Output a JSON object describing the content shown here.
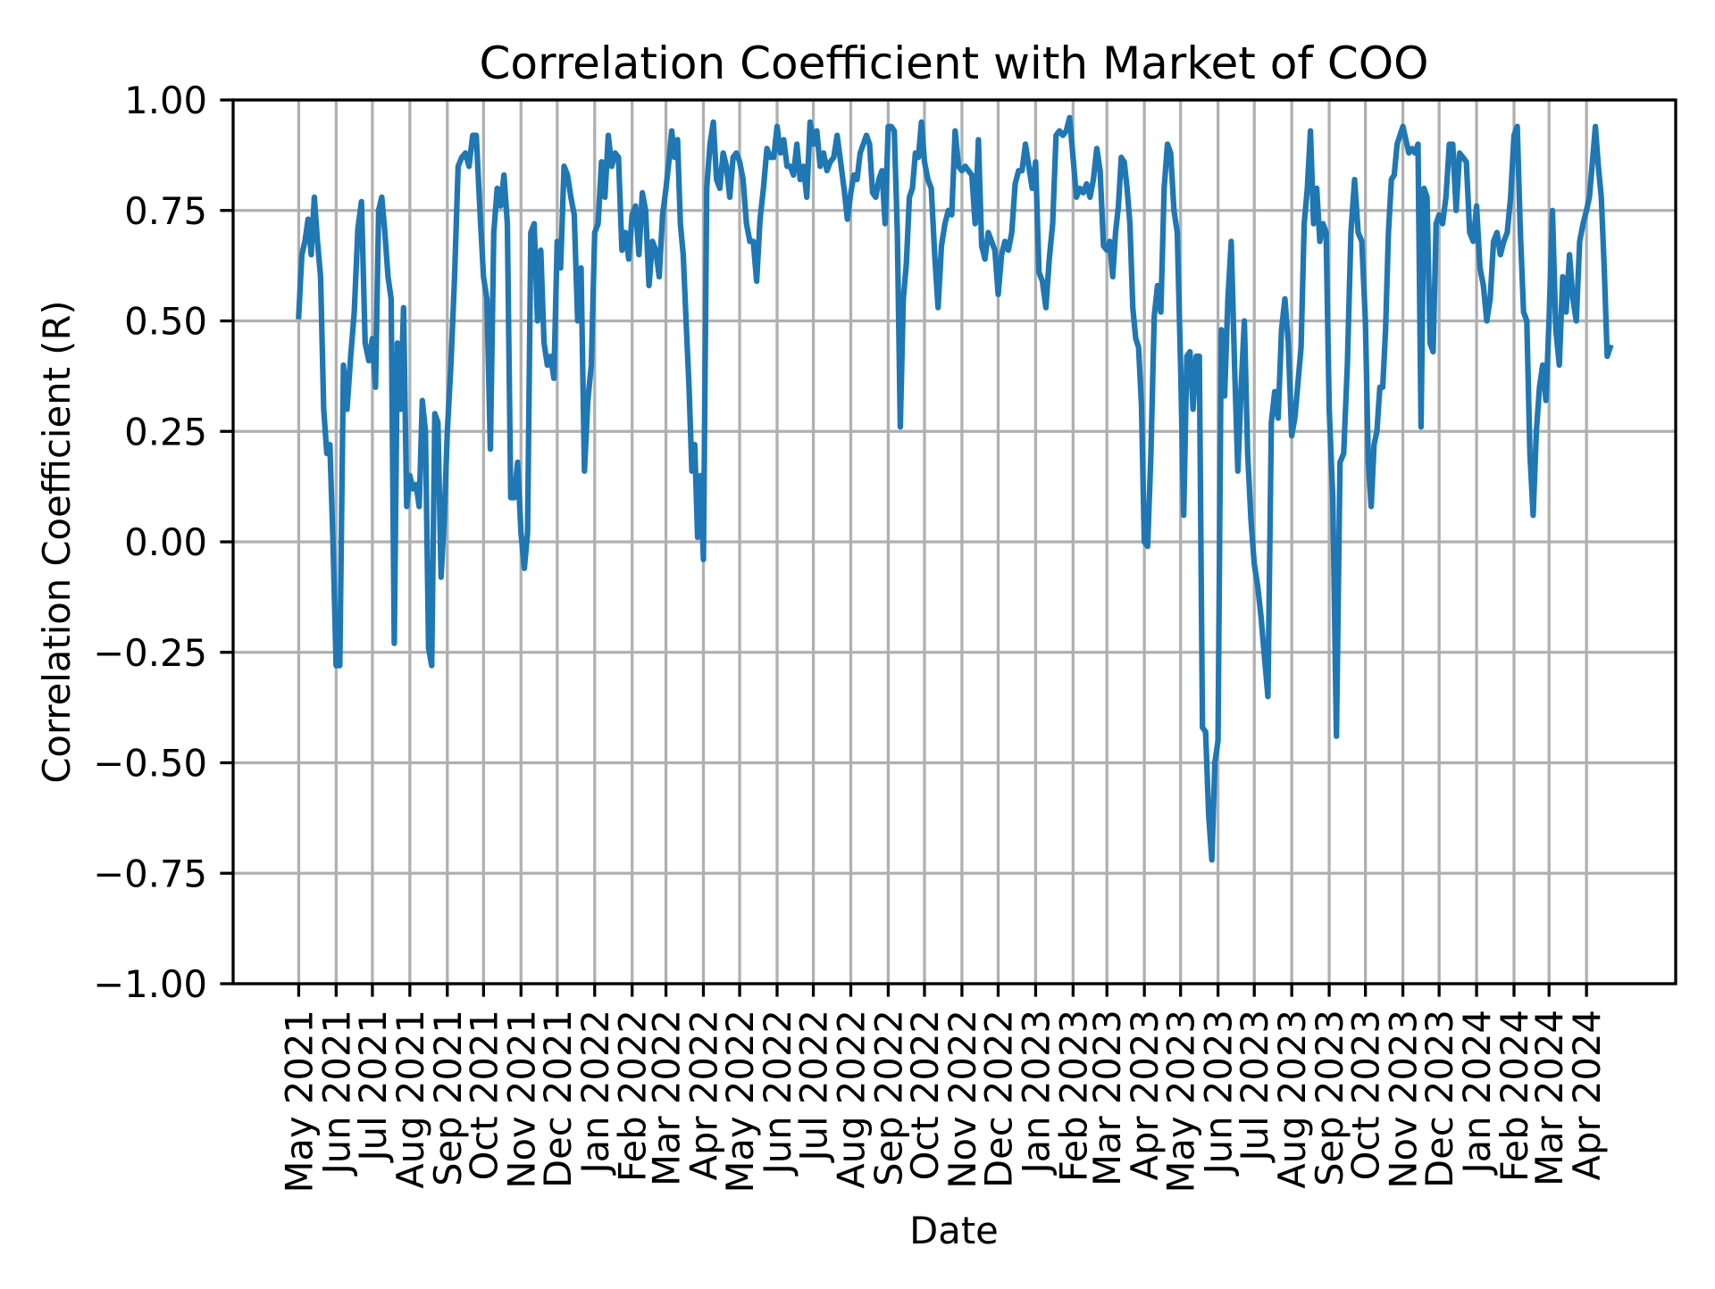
{
  "chart_data": {
    "type": "line",
    "title": "Correlation Coefficient with Market of COO",
    "xlabel": "Date",
    "ylabel": "Correlation Coefficient (R)",
    "ylim": [
      -1.0,
      1.0
    ],
    "yticks": [
      "1.00",
      "0.75",
      "0.50",
      "0.25",
      "0.00",
      "−0.25",
      "−0.50",
      "−0.75",
      "−1.00"
    ],
    "ytick_values": [
      1.0,
      0.75,
      0.5,
      0.25,
      0.0,
      -0.25,
      -0.5,
      -0.75,
      -1.0
    ],
    "xticks": [
      "May 2021",
      "Jun 2021",
      "Jul 2021",
      "Aug 2021",
      "Sep 2021",
      "Oct 2021",
      "Nov 2021",
      "Dec 2021",
      "Jan 2022",
      "Feb 2022",
      "Mar 2022",
      "Apr 2022",
      "May 2022",
      "Jun 2022",
      "Jul 2022",
      "Aug 2022",
      "Sep 2022",
      "Oct 2022",
      "Nov 2022",
      "Dec 2022",
      "Jan 2023",
      "Feb 2023",
      "Mar 2023",
      "Apr 2023",
      "May 2023",
      "Jun 2023",
      "Jul 2023",
      "Aug 2023",
      "Sep 2023",
      "Oct 2023",
      "Nov 2023",
      "Dec 2023",
      "Jan 2024",
      "Feb 2024",
      "Mar 2024",
      "Apr 2024"
    ],
    "grid": true,
    "line_color": "#1f77b4",
    "series_by_month": [
      {
        "month": "2021-05",
        "values": [
          0.51,
          0.65,
          0.68,
          0.73,
          0.65,
          0.78,
          0.68,
          0.6,
          0.3,
          0.2,
          0.22,
          0.0
        ]
      },
      {
        "month": "2021-06",
        "values": [
          -0.28,
          -0.28,
          0.4,
          0.3,
          0.42,
          0.52,
          0.71,
          0.77,
          0.45,
          0.41
        ]
      },
      {
        "month": "2021-07",
        "values": [
          0.46,
          0.35,
          0.75,
          0.78,
          0.7,
          0.6,
          0.55,
          -0.23,
          0.45,
          0.3,
          0.53,
          0.08
        ]
      },
      {
        "month": "2021-08",
        "values": [
          0.15,
          0.12,
          0.13,
          0.08,
          0.32,
          0.25,
          -0.24,
          -0.28,
          0.29,
          0.27,
          -0.08,
          0.05
        ]
      },
      {
        "month": "2021-09",
        "values": [
          0.25,
          0.4,
          0.6,
          0.85,
          0.87,
          0.88,
          0.85,
          0.92,
          0.92,
          0.75
        ]
      },
      {
        "month": "2021-10",
        "values": [
          0.6,
          0.55,
          0.21,
          0.7,
          0.8,
          0.76,
          0.83,
          0.72,
          0.1,
          0.1,
          0.18
        ]
      },
      {
        "month": "2021-11",
        "values": [
          0.02,
          -0.06,
          0.02,
          0.7,
          0.72,
          0.5,
          0.66,
          0.45,
          0.4,
          0.42,
          0.37
        ]
      },
      {
        "month": "2021-12",
        "values": [
          0.68,
          0.62,
          0.85,
          0.83,
          0.78,
          0.74,
          0.5,
          0.62,
          0.16,
          0.32,
          0.4
        ]
      },
      {
        "month": "2022-01",
        "values": [
          0.7,
          0.72,
          0.86,
          0.78,
          0.92,
          0.85,
          0.88,
          0.87,
          0.66,
          0.7,
          0.64
        ]
      },
      {
        "month": "2022-02",
        "values": [
          0.74,
          0.76,
          0.65,
          0.79,
          0.75,
          0.58,
          0.68,
          0.66,
          0.6,
          0.74
        ]
      },
      {
        "month": "2022-03",
        "values": [
          0.8,
          0.86,
          0.93,
          0.87,
          0.91,
          0.72,
          0.65,
          0.5,
          0.35,
          0.16,
          0.22,
          0.01,
          0.15
        ]
      },
      {
        "month": "2022-04",
        "values": [
          -0.04,
          0.8,
          0.9,
          0.95,
          0.82,
          0.8,
          0.88,
          0.85,
          0.78,
          0.87,
          0.88
        ]
      },
      {
        "month": "2022-05",
        "values": [
          0.86,
          0.82,
          0.72,
          0.68,
          0.68,
          0.59,
          0.73,
          0.8,
          0.89,
          0.87,
          0.87
        ]
      },
      {
        "month": "2022-06",
        "values": [
          0.94,
          0.88,
          0.91,
          0.85,
          0.85,
          0.83,
          0.9,
          0.82,
          0.85,
          0.78,
          0.95
        ]
      },
      {
        "month": "2022-07",
        "values": [
          0.9,
          0.93,
          0.85,
          0.88,
          0.84,
          0.86,
          0.87,
          0.92,
          0.86,
          0.8,
          0.73
        ]
      },
      {
        "month": "2022-08",
        "values": [
          0.79,
          0.83,
          0.82,
          0.88,
          0.9,
          0.92,
          0.9,
          0.79,
          0.78,
          0.82,
          0.84,
          0.72
        ]
      },
      {
        "month": "2022-09",
        "values": [
          0.94,
          0.94,
          0.93,
          0.7,
          0.26,
          0.55,
          0.63,
          0.78,
          0.8,
          0.88,
          0.87,
          0.95
        ]
      },
      {
        "month": "2022-10",
        "values": [
          0.86,
          0.82,
          0.8,
          0.65,
          0.53,
          0.67,
          0.72,
          0.75,
          0.74,
          0.93,
          0.85
        ]
      },
      {
        "month": "2022-11",
        "values": [
          0.84,
          0.85,
          0.84,
          0.83,
          0.72,
          0.91,
          0.67,
          0.64,
          0.7,
          0.68,
          0.66
        ]
      },
      {
        "month": "2022-12",
        "values": [
          0.56,
          0.65,
          0.68,
          0.66,
          0.7,
          0.81,
          0.84,
          0.84,
          0.9,
          0.85,
          0.8
        ]
      },
      {
        "month": "2023-01",
        "values": [
          0.86,
          0.61,
          0.59,
          0.53,
          0.64,
          0.72,
          0.92,
          0.93,
          0.92,
          0.93,
          0.96
        ]
      },
      {
        "month": "2023-02",
        "values": [
          0.87,
          0.78,
          0.8,
          0.79,
          0.81,
          0.78,
          0.82,
          0.89,
          0.84,
          0.67
        ]
      },
      {
        "month": "2023-03",
        "values": [
          0.66,
          0.68,
          0.6,
          0.7,
          0.76,
          0.87,
          0.86,
          0.8,
          0.72,
          0.53,
          0.46,
          0.44,
          0.31
        ]
      },
      {
        "month": "2023-04",
        "values": [
          0.0,
          -0.01,
          0.2,
          0.51,
          0.58,
          0.52,
          0.8,
          0.9,
          0.88,
          0.75,
          0.7
        ]
      },
      {
        "month": "2023-05",
        "values": [
          0.4,
          0.06,
          0.42,
          0.43,
          0.3,
          0.42,
          0.42,
          -0.42,
          -0.43,
          -0.62,
          -0.72,
          -0.5
        ]
      },
      {
        "month": "2023-06",
        "values": [
          -0.45,
          0.48,
          0.33,
          0.55,
          0.68,
          0.4,
          0.16,
          0.35,
          0.5,
          0.2,
          0.05
        ]
      },
      {
        "month": "2023-07",
        "values": [
          -0.05,
          -0.1,
          -0.17,
          -0.26,
          -0.35,
          0.27,
          0.34,
          0.28,
          0.48,
          0.55,
          0.45
        ]
      },
      {
        "month": "2023-08",
        "values": [
          0.24,
          0.28,
          0.36,
          0.44,
          0.72,
          0.8,
          0.93,
          0.72,
          0.8,
          0.68,
          0.72,
          0.7
        ]
      },
      {
        "month": "2023-09",
        "values": [
          0.3,
          0.1,
          -0.44,
          0.18,
          0.2,
          0.4,
          0.7,
          0.82,
          0.7,
          0.68
        ]
      },
      {
        "month": "2023-10",
        "values": [
          0.5,
          0.18,
          0.08,
          0.22,
          0.25,
          0.35,
          0.35,
          0.48,
          0.7,
          0.82,
          0.83,
          0.9,
          0.92
        ]
      },
      {
        "month": "2023-11",
        "values": [
          0.94,
          0.91,
          0.88,
          0.89,
          0.88,
          0.9,
          0.26,
          0.8,
          0.78,
          0.45,
          0.43,
          0.72
        ]
      },
      {
        "month": "2023-12",
        "values": [
          0.74,
          0.72,
          0.78,
          0.9,
          0.9,
          0.75,
          0.88,
          0.87,
          0.86,
          0.7,
          0.68
        ]
      },
      {
        "month": "2024-01",
        "values": [
          0.76,
          0.62,
          0.58,
          0.5,
          0.55,
          0.68,
          0.7,
          0.65,
          0.68,
          0.7,
          0.78
        ]
      },
      {
        "month": "2024-02",
        "values": [
          0.92,
          0.94,
          0.7,
          0.52,
          0.5,
          0.2,
          0.06,
          0.25,
          0.35,
          0.4,
          0.32
        ]
      },
      {
        "month": "2024-03",
        "values": [
          0.5,
          0.75,
          0.48,
          0.4,
          0.6,
          0.52,
          0.65,
          0.55,
          0.5,
          0.68,
          0.72
        ]
      },
      {
        "month": "2024-04",
        "values": [
          0.75,
          0.78,
          0.86,
          0.94,
          0.85,
          0.78,
          0.62,
          0.42,
          0.44
        ]
      }
    ]
  }
}
